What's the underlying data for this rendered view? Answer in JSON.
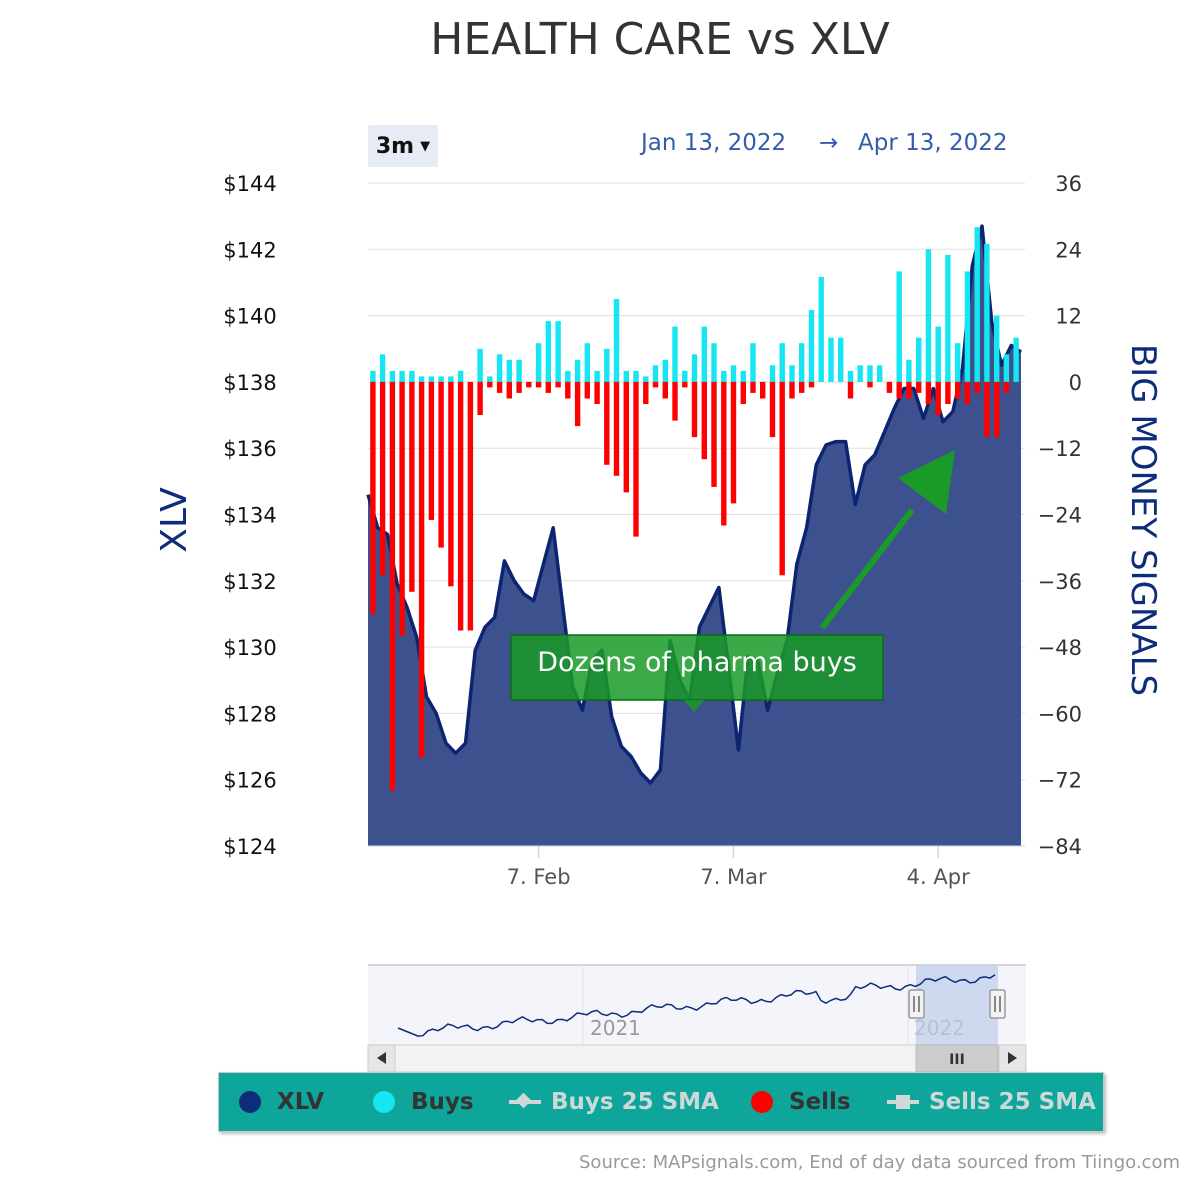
{
  "title": "HEALTH CARE vs XLV",
  "range_selector": {
    "label": "3m"
  },
  "date_range": {
    "from": "Jan 13, 2022",
    "arrow": "→",
    "to": "Apr 13, 2022"
  },
  "annotation": {
    "text": "Dozens of pharma buys",
    "color": "#1a9a28"
  },
  "navigator": {
    "labels": [
      "2021",
      "2022"
    ],
    "scroll_grip": "III",
    "handle_grip": "||"
  },
  "legend": [
    {
      "label": "XLV",
      "color": "#0d2c7c",
      "symbol": "dot",
      "text_color": "#333333"
    },
    {
      "label": "Buys",
      "color": "#16e6f2",
      "symbol": "dot",
      "text_color": "#333333"
    },
    {
      "label": "Buys 25 SMA",
      "color": "#cfd8d8",
      "symbol": "line-diamond",
      "text_color": "#cfd8d8"
    },
    {
      "label": "Sells",
      "color": "#ff0000",
      "symbol": "dot",
      "text_color": "#333333"
    },
    {
      "label": "Sells 25 SMA",
      "color": "#cfd8d8",
      "symbol": "line-square",
      "text_color": "#cfd8d8"
    }
  ],
  "source": "Source: MAPsignals.com, End of day data sourced from Tiingo.com",
  "colors": {
    "area_fill": "#3e518f",
    "area_line": "#0d2470",
    "buys": "#16e6f2",
    "sells": "#ff0000",
    "grid": "#e0e0e0"
  },
  "chart_data": {
    "type": "bar+area",
    "title": "HEALTH CARE vs XLV",
    "x_ticks": [
      "7. Feb",
      "7. Mar",
      "4. Apr"
    ],
    "x_tick_index": [
      17,
      37,
      58
    ],
    "left_axis": {
      "label": "XLV",
      "ticks": [
        "$144",
        "$142",
        "$140",
        "$138",
        "$136",
        "$134",
        "$132",
        "$130",
        "$128",
        "$126",
        "$124"
      ],
      "range": [
        124,
        144
      ]
    },
    "right_axis": {
      "label": "BIG MONEY SIGNALS",
      "ticks": [
        "36",
        "24",
        "12",
        "0",
        "−12",
        "−24",
        "−36",
        "−48",
        "−60",
        "−72",
        "−84"
      ],
      "range": [
        -84,
        36
      ]
    },
    "series": [
      {
        "name": "XLV",
        "type": "area",
        "axis": "left",
        "values": [
          134.6,
          133.6,
          133.4,
          131.9,
          131.2,
          130.3,
          128.5,
          128.0,
          127.1,
          126.8,
          127.1,
          129.9,
          130.6,
          130.9,
          132.6,
          132.0,
          131.6,
          131.4,
          132.5,
          133.6,
          131.2,
          128.8,
          128.1,
          129.6,
          129.9,
          127.9,
          127.0,
          126.7,
          126.2,
          125.9,
          126.3,
          130.2,
          129.0,
          128.4,
          130.6,
          131.2,
          131.8,
          129.4,
          126.9,
          129.7,
          129.6,
          128.1,
          129.2,
          130.2,
          132.5,
          133.6,
          135.5,
          136.1,
          136.2,
          136.2,
          134.3,
          135.5,
          135.8,
          136.5,
          137.2,
          137.8,
          137.8,
          136.9,
          137.8,
          136.8,
          137.1,
          138.4,
          141.5,
          142.7,
          139.8,
          138.5,
          139.1,
          138.9
        ],
        "x_offset": -0.5
      },
      {
        "name": "Buys",
        "type": "bar",
        "axis": "right",
        "values": [
          2,
          5,
          2,
          2,
          2,
          1,
          1,
          1,
          1,
          2,
          0,
          6,
          1,
          5,
          4,
          4,
          0,
          7,
          11,
          11,
          2,
          4,
          7,
          2,
          6,
          15,
          2,
          2,
          1,
          3,
          4,
          10,
          2,
          5,
          10,
          7,
          2,
          3,
          2,
          7,
          0,
          3,
          7,
          3,
          7,
          13,
          19,
          8,
          8,
          2,
          3,
          3,
          3,
          0,
          20,
          4,
          8,
          24,
          10,
          23,
          7,
          20,
          28,
          25,
          12,
          5,
          8
        ]
      },
      {
        "name": "Sells",
        "type": "bar",
        "axis": "right",
        "values": [
          -42,
          -35,
          -74,
          -46,
          -38,
          -68,
          -25,
          -30,
          -37,
          -45,
          -45,
          -6,
          -1,
          -2,
          -3,
          -2,
          -1,
          -1,
          -2,
          -1,
          -3,
          -8,
          -3,
          -4,
          -15,
          -17,
          -20,
          -28,
          -4,
          -1,
          -3,
          -7,
          -1,
          -10,
          -14,
          -19,
          -26,
          -22,
          -4,
          -2,
          -3,
          -10,
          -35,
          -3,
          -2,
          -1,
          0,
          0,
          0,
          -3,
          0,
          -1,
          0,
          -2,
          -3,
          -3,
          -2,
          -4,
          -6,
          -4,
          -3,
          -4,
          -2,
          -10,
          -10,
          -2
        ]
      }
    ],
    "grid": true,
    "legend_position": "bottom"
  }
}
